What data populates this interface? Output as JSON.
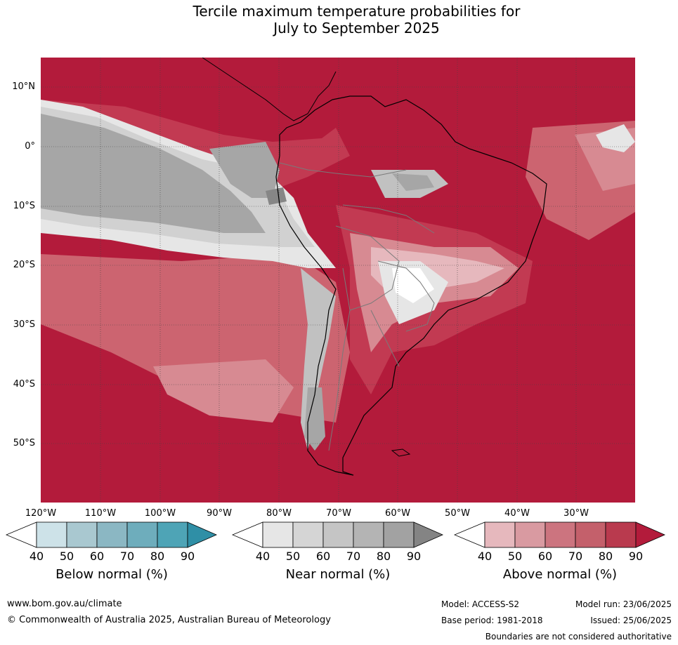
{
  "title": {
    "line1": "Tercile maximum temperature probabilities for",
    "line2": "July to September 2025"
  },
  "map": {
    "lat_labels": [
      "10°N",
      "0°",
      "10°S",
      "20°S",
      "30°S",
      "40°S",
      "50°S"
    ],
    "lon_labels": [
      "120°W",
      "110°W",
      "100°W",
      "90°W",
      "80°W",
      "70°W",
      "60°W",
      "50°W",
      "40°W",
      "30°W"
    ],
    "colors": {
      "above_90": "#b31b3b",
      "above_80": "#c23a52",
      "above_70": "#cc6470",
      "above_60": "#d78a92",
      "above_50": "#e6b8bd",
      "near_50": "#e6e6e6",
      "near_60": "#d1d1d1",
      "near_70": "#c1c1c1",
      "near_80": "#a6a6a6",
      "near_90": "#868686",
      "white": "#ffffff"
    }
  },
  "legends": {
    "below": {
      "title": "Below normal (%)",
      "ticks": [
        "40",
        "50",
        "60",
        "70",
        "80",
        "90"
      ],
      "colors": [
        "#ffffff",
        "#cde2e8",
        "#a9c8d0",
        "#8bb7c3",
        "#6eadbc",
        "#4ea4b6",
        "#2f8fa6"
      ]
    },
    "near": {
      "title": "Near normal (%)",
      "ticks": [
        "40",
        "50",
        "60",
        "70",
        "80",
        "90"
      ],
      "colors": [
        "#ffffff",
        "#e6e6e6",
        "#d5d5d5",
        "#c5c5c5",
        "#b4b4b4",
        "#a2a2a2",
        "#848484"
      ]
    },
    "above": {
      "title": "Above normal (%)",
      "ticks": [
        "40",
        "50",
        "60",
        "70",
        "80",
        "90"
      ],
      "colors": [
        "#ffffff",
        "#e6b8bd",
        "#d99aa1",
        "#cc747f",
        "#c4606b",
        "#b93a4e",
        "#b31b3b"
      ]
    }
  },
  "footer": {
    "website": "www.bom.gov.au/climate",
    "copyright": "© Commonwealth of Australia 2025, Australian Bureau of Meteorology",
    "model": "Model: ACCESS-S2",
    "base_period": "Base period: 1981-2018",
    "model_run": "Model run: 23/06/2025",
    "issued": "Issued: 25/06/2025",
    "disclaimer": "Boundaries are not considered authoritative"
  }
}
